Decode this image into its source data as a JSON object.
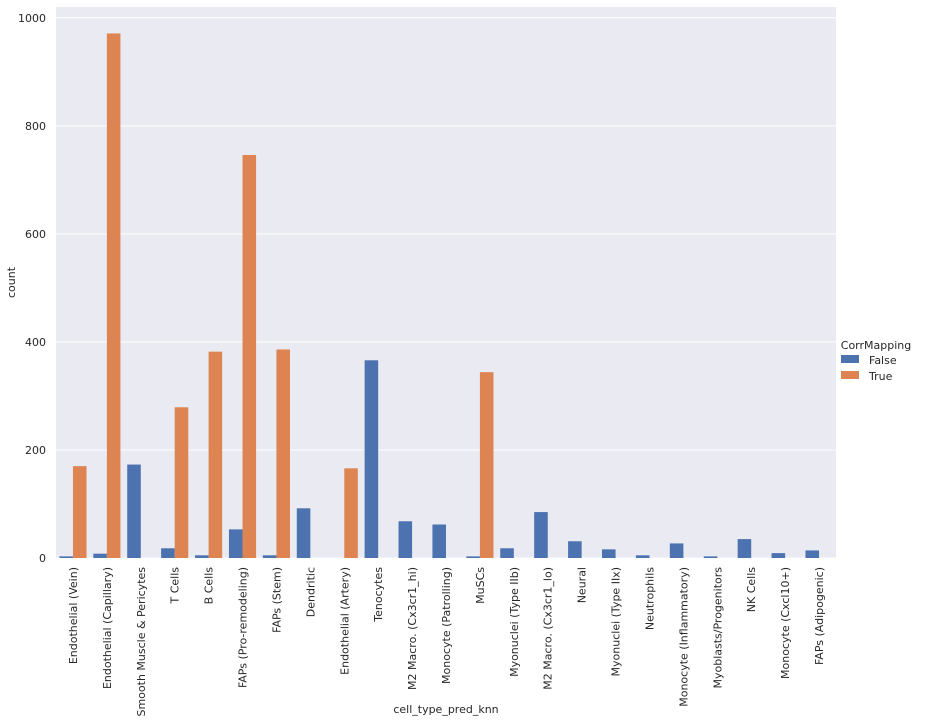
{
  "chart_data": {
    "type": "bar",
    "xlabel": "cell_type_pred_knn",
    "ylabel": "count",
    "ylim": [
      0,
      1020
    ],
    "yticks": [
      0,
      200,
      400,
      600,
      800,
      1000
    ],
    "grid": true,
    "legend": {
      "title": "CorrMapping",
      "position": "right"
    },
    "categories": [
      "Endothelial (Vein)",
      "Endothelial (Capillary)",
      "Smooth Muscle & Pericytes",
      "T Cells",
      "B Cells",
      "FAPs (Pro-remodeling)",
      "FAPs (Stem)",
      "Dendritic",
      "Endothelial (Artery)",
      "Tenocytes",
      "M2 Macro. (Cx3cr1_hi)",
      "Monocyte (Patrolling)",
      "MuSCs",
      "Myonuclei (Type IIb)",
      "M2 Macro. (Cx3cr1_lo)",
      "Neural",
      "Myonuclei (Type IIx)",
      "Neutrophils",
      "Monocyte (Inflammatory)",
      "Myoblasts/Progenitors",
      "NK Cells",
      "Monocyte (Cxcl10+)",
      "FAPs (Adipogenic)"
    ],
    "series": [
      {
        "name": "False",
        "color": "#4c72b0",
        "values": [
          3,
          8,
          173,
          18,
          5,
          53,
          5,
          92,
          0,
          366,
          68,
          62,
          3,
          18,
          85,
          31,
          16,
          5,
          27,
          3,
          35,
          9,
          14
        ]
      },
      {
        "name": "True",
        "color": "#dd8452",
        "values": [
          170,
          971,
          0,
          279,
          382,
          746,
          386,
          0,
          166,
          0,
          0,
          0,
          344,
          0,
          0,
          0,
          0,
          0,
          0,
          0,
          0,
          0,
          0
        ]
      }
    ],
    "colors": {
      "background": "#eaeaf2",
      "grid": "#ffffff",
      "text": "#262626"
    }
  }
}
